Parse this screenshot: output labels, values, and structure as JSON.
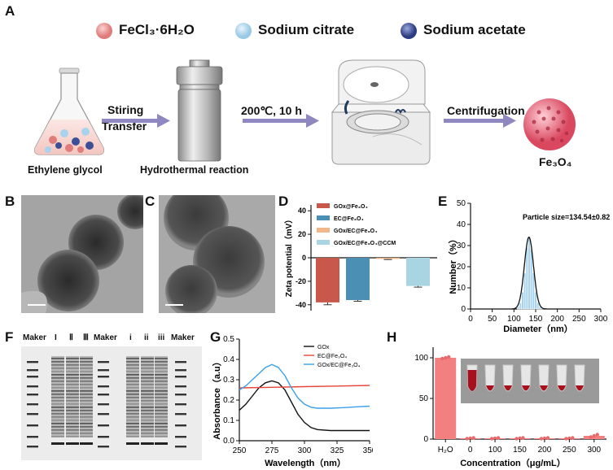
{
  "panelA": {
    "label": "A",
    "reagents": [
      {
        "name": "FeCl₃·6H₂O",
        "color": "#e07c7c"
      },
      {
        "name": "Sodium citrate",
        "color": "#a8d3ee"
      },
      {
        "name": "Sodium acetate",
        "color": "#3b4f96"
      }
    ],
    "steps": {
      "arrow1_line1": "Stiring",
      "arrow1_line2": "Transfer",
      "arrow2": "200℃, 10 h",
      "arrow3": "Centrifugation"
    },
    "captions": {
      "flask": "Ethylene glycol",
      "reactor": "Hydrothermal reaction",
      "product": "Fe₃O₄"
    }
  },
  "panelB": {
    "label": "B"
  },
  "panelC": {
    "label": "C"
  },
  "panelD": {
    "label": "D",
    "chart_data": {
      "type": "bar",
      "ylabel": "Zeta potential（mV）",
      "ylim": [
        -45,
        45
      ],
      "yticks": [
        "40",
        "20",
        "0",
        "-20",
        "-40"
      ],
      "series": [
        {
          "name": "GOx@Fe₃O₄",
          "value": -38,
          "error": 2,
          "color": "#c8584a"
        },
        {
          "name": "EC@Fe₃O₄",
          "value": -36,
          "error": 1,
          "color": "#4b8fb5"
        },
        {
          "name": "GOx/EC@Fe₃O₄",
          "value": -1,
          "error": 0.5,
          "color": "#f0b88a"
        },
        {
          "name": "GOx/EC@Fe₃O₄@CCM",
          "value": -24,
          "error": 1,
          "color": "#a9d5e2"
        }
      ]
    }
  },
  "panelE": {
    "label": "E",
    "chart_data": {
      "type": "bar",
      "annotation": "Particle size=134.54±0.82",
      "xlabel": "Diameter（nm）",
      "ylabel": "Number（%）",
      "xlim": [
        0,
        300
      ],
      "ylim": [
        0,
        50
      ],
      "xticks": [
        "0",
        "50",
        "100",
        "150",
        "200",
        "250",
        "300"
      ],
      "yticks": [
        "0",
        "10",
        "20",
        "30",
        "40",
        "50"
      ],
      "bin_centers": [
        110,
        115,
        120,
        125,
        130,
        135,
        140,
        145,
        150,
        155,
        160,
        165
      ],
      "values": [
        1,
        3,
        8,
        17,
        29,
        34,
        28,
        17,
        8,
        3,
        1,
        0.5
      ],
      "fit_center": 134.5,
      "fit_peak": 34,
      "fit_sigma": 10.5
    }
  },
  "panelF": {
    "label": "F",
    "lanes": [
      "Maker",
      "I",
      "Ⅱ",
      "Ⅲ",
      "Maker",
      "i",
      "ii",
      "iii",
      "Maker"
    ]
  },
  "panelG": {
    "label": "G",
    "chart_data": {
      "type": "line",
      "xlabel": "Wavelength（nm）",
      "ylabel": "Absorbance（a.u）",
      "xlim": [
        250,
        350
      ],
      "ylim": [
        0,
        0.5
      ],
      "xticks": [
        "250",
        "275",
        "300",
        "325",
        "350"
      ],
      "yticks": [
        "0.0",
        "0.1",
        "0.2",
        "0.3",
        "0.4",
        "0.5"
      ],
      "series": [
        {
          "name": "GOx",
          "color": "#111111",
          "x": [
            250,
            255,
            260,
            265,
            270,
            275,
            280,
            285,
            290,
            295,
            300,
            305,
            310,
            320,
            330,
            340,
            350
          ],
          "y": [
            0.15,
            0.18,
            0.22,
            0.26,
            0.285,
            0.295,
            0.285,
            0.25,
            0.19,
            0.13,
            0.09,
            0.065,
            0.055,
            0.05,
            0.05,
            0.05,
            0.05
          ]
        },
        {
          "name": "EC@Fe₃O₄",
          "color": "#e8443a",
          "x": [
            250,
            275,
            300,
            325,
            350
          ],
          "y": [
            0.26,
            0.263,
            0.266,
            0.269,
            0.272
          ]
        },
        {
          "name": "GOx/EC@Fe₃O₄",
          "color": "#3aa0e8",
          "x": [
            250,
            255,
            260,
            265,
            270,
            275,
            280,
            285,
            290,
            295,
            300,
            305,
            310,
            320,
            330,
            340,
            350
          ],
          "y": [
            0.25,
            0.27,
            0.3,
            0.33,
            0.36,
            0.375,
            0.36,
            0.32,
            0.26,
            0.21,
            0.18,
            0.165,
            0.16,
            0.16,
            0.163,
            0.167,
            0.17
          ]
        }
      ]
    }
  },
  "panelH": {
    "label": "H",
    "chart_data": {
      "type": "bar",
      "xlabel": "Concentration（μg/mL）",
      "categories": [
        "H₂O",
        "0",
        "100",
        "150",
        "200",
        "250",
        "300"
      ],
      "values": [
        100,
        1,
        1,
        1,
        1,
        1,
        4
      ],
      "points": [
        [
          99,
          100,
          101
        ],
        [
          0.5,
          1,
          1.5
        ],
        [
          0.5,
          1,
          1.5
        ],
        [
          0.5,
          1,
          1.5
        ],
        [
          0.5,
          1,
          1.5
        ],
        [
          0.5,
          1,
          1.5
        ],
        [
          2.5,
          4,
          5.5
        ]
      ],
      "ylim": [
        0,
        105
      ],
      "yticks": [
        "0",
        "50",
        "100"
      ],
      "color": "#f28080"
    }
  }
}
